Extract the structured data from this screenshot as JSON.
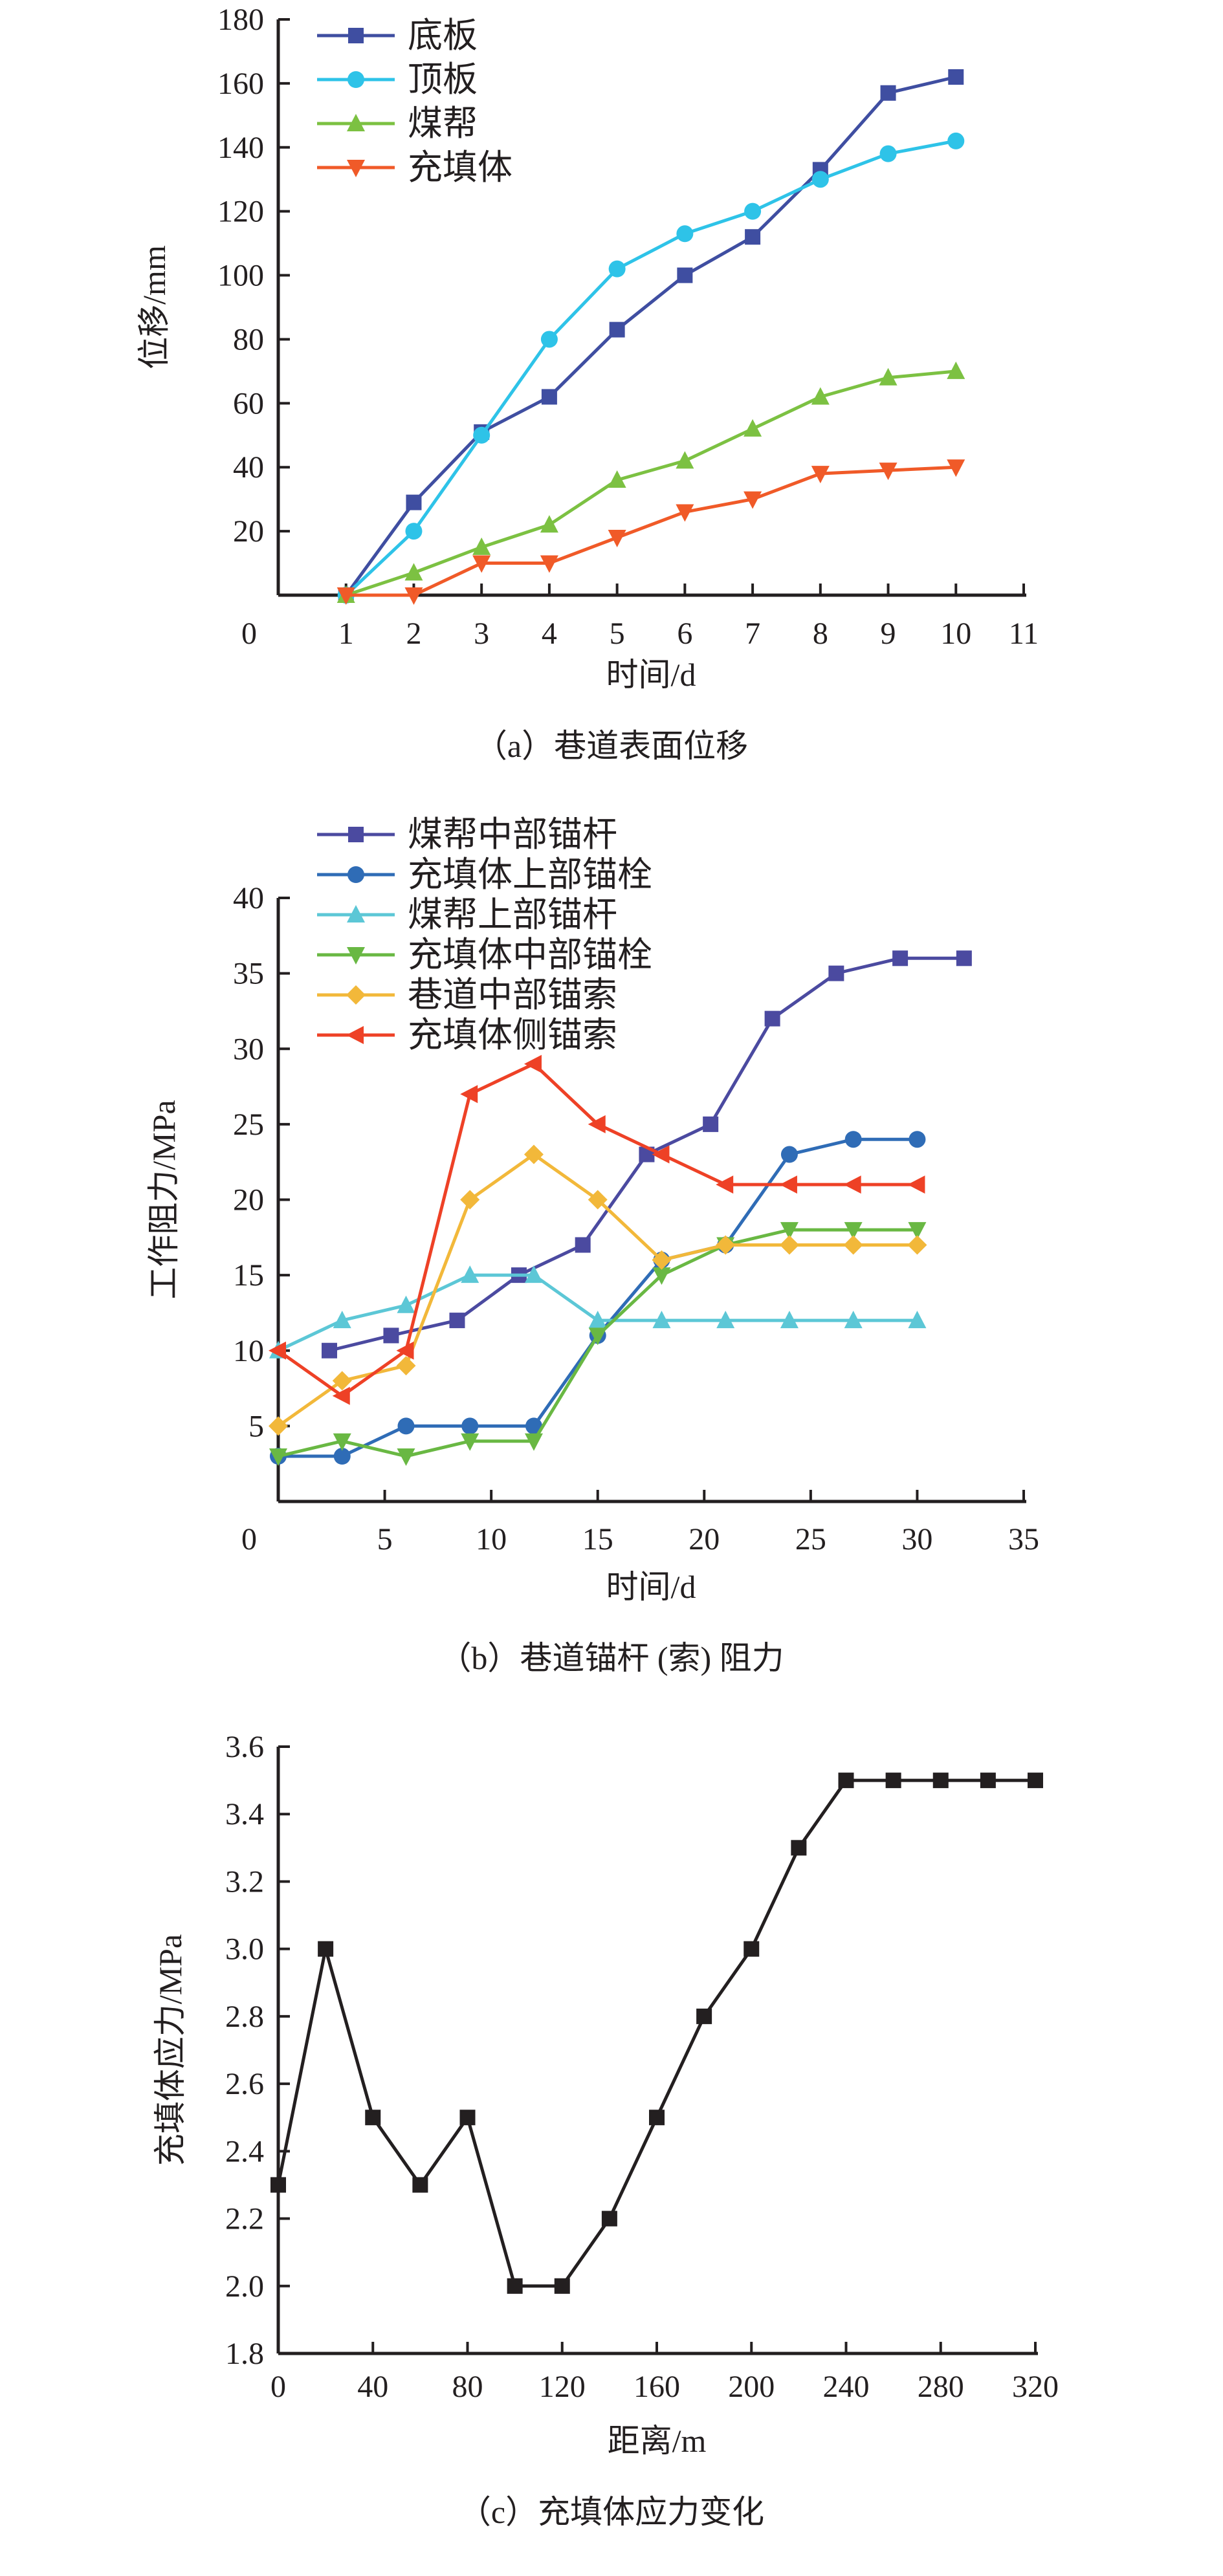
{
  "chart_data": [
    {
      "type": "line",
      "title": "",
      "caption": "（a）巷道表面位移",
      "xlabel": "时间/d",
      "ylabel": "位移/mm",
      "xlim": [
        0,
        11
      ],
      "ylim": [
        0,
        180
      ],
      "xticks": [
        0,
        1,
        2,
        3,
        4,
        5,
        6,
        7,
        8,
        9,
        10,
        11
      ],
      "yticks": [
        20,
        40,
        60,
        80,
        100,
        120,
        140,
        160,
        180
      ],
      "legend_position": "top-left",
      "x": [
        1,
        2,
        3,
        4,
        5,
        6,
        7,
        8,
        9,
        10
      ],
      "series": [
        {
          "name": "底板",
          "marker": "square",
          "color": "#3f4ea1",
          "values": [
            0,
            29,
            51,
            62,
            83,
            100,
            112,
            133,
            157,
            162
          ]
        },
        {
          "name": "顶板",
          "marker": "circle",
          "color": "#2ec3e8",
          "values": [
            0,
            20,
            50,
            80,
            102,
            113,
            120,
            130,
            138,
            142
          ]
        },
        {
          "name": "煤帮",
          "marker": "triangle-up",
          "color": "#7cc142",
          "values": [
            0,
            7,
            15,
            22,
            36,
            42,
            52,
            62,
            68,
            70
          ]
        },
        {
          "name": "充填体",
          "marker": "triangle-down",
          "color": "#f05a28",
          "values": [
            0,
            0,
            10,
            10,
            18,
            26,
            30,
            38,
            39,
            40
          ]
        }
      ]
    },
    {
      "type": "line",
      "title": "",
      "caption": "（b）巷道锚杆 (索) 阻力",
      "xlabel": "时间/d",
      "ylabel": "工作阻力/MPa",
      "xlim": [
        0,
        35
      ],
      "ylim": [
        0,
        40
      ],
      "xticks": [
        0,
        5,
        10,
        15,
        20,
        25,
        30,
        35
      ],
      "yticks": [
        5,
        10,
        15,
        20,
        25,
        30,
        35,
        40
      ],
      "legend_position": "top-left",
      "series": [
        {
          "name": "煤帮中部锚杆",
          "marker": "square",
          "color": "#4b4aa0",
          "x": [
            2.4,
            5.3,
            8.4,
            11.3,
            14.3,
            17.3,
            20.3,
            23.2,
            26.2,
            29.2,
            32.2
          ],
          "values": [
            10,
            11,
            12,
            15,
            17,
            23,
            25,
            32,
            35,
            36,
            36
          ]
        },
        {
          "name": "充填体上部锚栓",
          "marker": "circle",
          "color": "#2f6cb6",
          "x": [
            0,
            3,
            6,
            9,
            12,
            15,
            18,
            21,
            24,
            27,
            30
          ],
          "values": [
            3,
            3,
            5,
            5,
            5,
            11,
            16,
            17,
            23,
            24,
            24
          ]
        },
        {
          "name": "煤帮上部锚杆",
          "marker": "triangle-up",
          "color": "#5cc7d6",
          "x": [
            0,
            3,
            6,
            9,
            12,
            15,
            18,
            21,
            24,
            27,
            30
          ],
          "values": [
            10,
            12,
            13,
            15,
            15,
            12,
            12,
            12,
            12,
            12,
            12
          ]
        },
        {
          "name": "充填体中部锚栓",
          "marker": "triangle-down",
          "color": "#69b843",
          "x": [
            0,
            3,
            6,
            9,
            12,
            15,
            18,
            21,
            24,
            27,
            30
          ],
          "values": [
            3,
            4,
            3,
            4,
            4,
            11,
            15,
            17,
            18,
            18,
            18
          ]
        },
        {
          "name": "巷道中部锚索",
          "marker": "diamond",
          "color": "#f2b83a",
          "x": [
            0,
            3,
            6,
            9,
            12,
            15,
            18,
            21,
            24,
            27,
            30
          ],
          "values": [
            5,
            8,
            9,
            20,
            23,
            20,
            16,
            17,
            17,
            17,
            17
          ]
        },
        {
          "name": "充填体侧锚索",
          "marker": "triangle-left",
          "color": "#ee4126",
          "x": [
            0,
            3,
            6,
            9,
            12,
            15,
            18,
            21,
            24,
            27,
            30
          ],
          "values": [
            10,
            7,
            10,
            27,
            29,
            25,
            23,
            21,
            21,
            21,
            21
          ]
        }
      ]
    },
    {
      "type": "line",
      "title": "",
      "caption": "（c）充填体应力变化",
      "xlabel": "距离/m",
      "ylabel": "充填体应力/MPa",
      "xlim": [
        0,
        320
      ],
      "ylim": [
        1.8,
        3.6
      ],
      "xticks": [
        0,
        40,
        80,
        120,
        160,
        200,
        240,
        280,
        320
      ],
      "yticks": [
        1.8,
        2.0,
        2.2,
        2.4,
        2.6,
        2.8,
        3.0,
        3.2,
        3.4,
        3.6
      ],
      "ytick_labels": [
        "1.8",
        "2.0",
        "2.2",
        "2.4",
        "2.6",
        "2.8",
        "3.0",
        "3.2",
        "3.4",
        "3.6"
      ],
      "series": [
        {
          "name": "充填体应力",
          "marker": "square",
          "color": "#231f20",
          "x": [
            0,
            20,
            40,
            60,
            80,
            100,
            120,
            140,
            160,
            180,
            200,
            220,
            240,
            260,
            280,
            300,
            320
          ],
          "values": [
            2.3,
            3.0,
            2.5,
            2.3,
            2.5,
            2.0,
            2.0,
            2.2,
            2.5,
            2.8,
            3.0,
            3.3,
            3.5,
            3.5,
            3.5,
            3.5,
            3.5
          ]
        }
      ]
    }
  ]
}
